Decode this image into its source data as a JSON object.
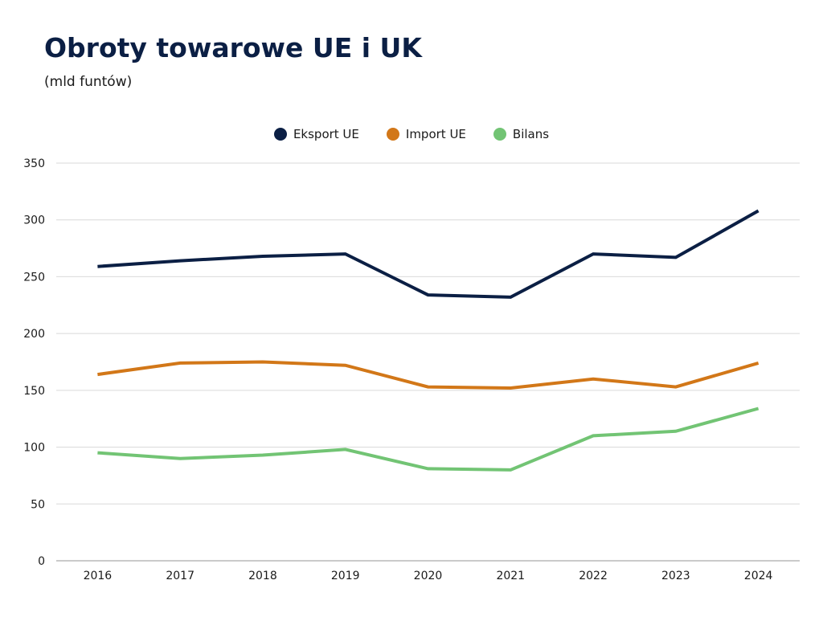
{
  "header": {
    "title": "Obroty towarowe UE i UK",
    "subtitle": "(mld funtów)"
  },
  "chart_data": {
    "type": "line",
    "title": "Obroty towarowe UE i UK",
    "subtitle": "(mld funtów)",
    "xlabel": "",
    "ylabel": "",
    "x": [
      "2016",
      "2017",
      "2018",
      "2019",
      "2020",
      "2021",
      "2022",
      "2023",
      "2024"
    ],
    "ylim": [
      0,
      350
    ],
    "yticks": [
      0,
      50,
      100,
      150,
      200,
      250,
      300,
      350
    ],
    "grid": true,
    "legend_position": "top-center",
    "series": [
      {
        "name": "Eksport UE",
        "color": "#0b1f44",
        "values": [
          259,
          264,
          268,
          270,
          234,
          232,
          270,
          267,
          308
        ]
      },
      {
        "name": "Import UE",
        "color": "#d27718",
        "values": [
          164,
          174,
          175,
          172,
          153,
          152,
          160,
          153,
          174
        ]
      },
      {
        "name": "Bilans",
        "color": "#72c474",
        "values": [
          95,
          90,
          93,
          98,
          81,
          80,
          110,
          114,
          134
        ]
      }
    ]
  }
}
